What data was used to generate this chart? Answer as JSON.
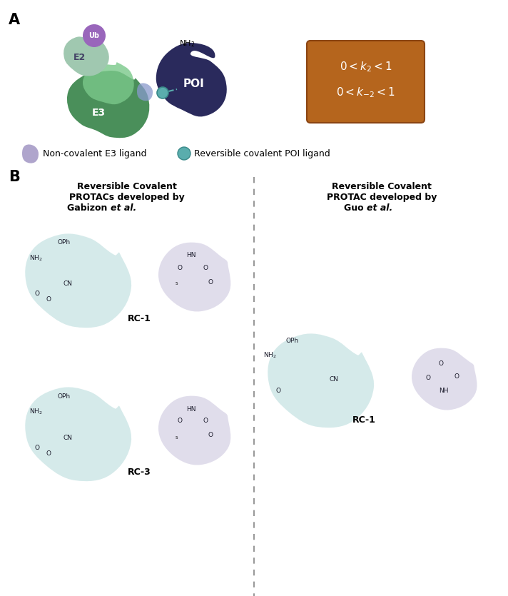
{
  "panel_a_label": "A",
  "panel_b_label": "B",
  "box_color": "#b5651d",
  "box_border_color": "#8B4513",
  "box_text_line1": "$0 < k_2 < 1$",
  "box_text_line2": "$0 < k_{-2} < 1$",
  "box_text_color": "white",
  "legend_e3_color": "#9b8fc0",
  "legend_poi_color": "#6ab3b8",
  "legend_e3_label": "Non-covalent E3 ligand",
  "legend_poi_label": "Reversible covalent POI ligand",
  "left_title": "Reversible Covalent\nPROTACs developed by\nGabizon",
  "left_title_italic": "et al.",
  "right_title": "Reversible Covalent\nPROTAC developed by\nGuo",
  "right_title_italic": "et al.",
  "rc1_label": "RC-1",
  "rc3_label": "RC-3",
  "rc1_right_label": "RC-1",
  "bg_color": "white"
}
